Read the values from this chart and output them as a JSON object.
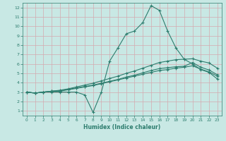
{
  "line1_x": [
    0,
    1,
    2,
    3,
    4,
    5,
    6,
    7,
    8,
    9,
    10,
    11,
    12,
    13,
    14,
    15,
    16,
    17,
    18,
    19,
    20,
    21,
    22,
    23
  ],
  "line1_y": [
    3.0,
    2.9,
    3.0,
    3.0,
    3.0,
    3.0,
    3.0,
    2.7,
    0.85,
    3.0,
    6.3,
    7.7,
    9.2,
    9.5,
    10.4,
    12.2,
    11.7,
    9.5,
    7.7,
    6.5,
    6.0,
    5.4,
    5.1,
    4.4
  ],
  "line2_x": [
    0,
    1,
    2,
    3,
    4,
    5,
    6,
    7,
    8,
    9,
    10,
    11,
    12,
    13,
    14,
    15,
    16,
    17,
    18,
    19,
    20,
    21,
    22,
    23
  ],
  "line2_y": [
    3.0,
    2.9,
    3.0,
    3.1,
    3.1,
    3.25,
    3.4,
    3.55,
    3.7,
    3.9,
    4.1,
    4.3,
    4.5,
    4.7,
    4.9,
    5.1,
    5.3,
    5.4,
    5.55,
    5.65,
    5.8,
    5.45,
    5.15,
    4.7
  ],
  "line3_x": [
    0,
    1,
    2,
    3,
    4,
    5,
    6,
    7,
    8,
    9,
    10,
    11,
    12,
    13,
    14,
    15,
    16,
    17,
    18,
    19,
    20,
    21,
    22,
    23
  ],
  "line3_y": [
    3.0,
    2.9,
    3.0,
    3.1,
    3.15,
    3.3,
    3.45,
    3.6,
    3.75,
    3.95,
    4.15,
    4.35,
    4.6,
    4.8,
    5.05,
    5.3,
    5.5,
    5.6,
    5.7,
    5.75,
    6.15,
    5.65,
    5.35,
    4.85
  ],
  "line4_x": [
    0,
    1,
    2,
    3,
    4,
    5,
    6,
    7,
    8,
    9,
    10,
    11,
    12,
    13,
    14,
    15,
    16,
    17,
    18,
    19,
    20,
    21,
    22,
    23
  ],
  "line4_y": [
    3.0,
    2.9,
    3.0,
    3.1,
    3.2,
    3.35,
    3.55,
    3.75,
    3.95,
    4.2,
    4.45,
    4.7,
    5.0,
    5.25,
    5.55,
    5.85,
    6.15,
    6.3,
    6.45,
    6.5,
    6.55,
    6.3,
    6.1,
    5.55
  ],
  "color": "#2d7d6e",
  "bg_color": "#c8e8e4",
  "grid_color": "#d4aab0",
  "xlabel": "Humidex (Indice chaleur)",
  "xlim": [
    -0.5,
    23.5
  ],
  "ylim": [
    0.5,
    12.5
  ],
  "yticks": [
    1,
    2,
    3,
    4,
    5,
    6,
    7,
    8,
    9,
    10,
    11,
    12
  ],
  "xticks": [
    0,
    1,
    2,
    3,
    4,
    5,
    6,
    7,
    8,
    9,
    10,
    11,
    12,
    13,
    14,
    15,
    16,
    17,
    18,
    19,
    20,
    21,
    22,
    23
  ],
  "marker": "+",
  "markersize": 3.0,
  "linewidth": 0.8
}
